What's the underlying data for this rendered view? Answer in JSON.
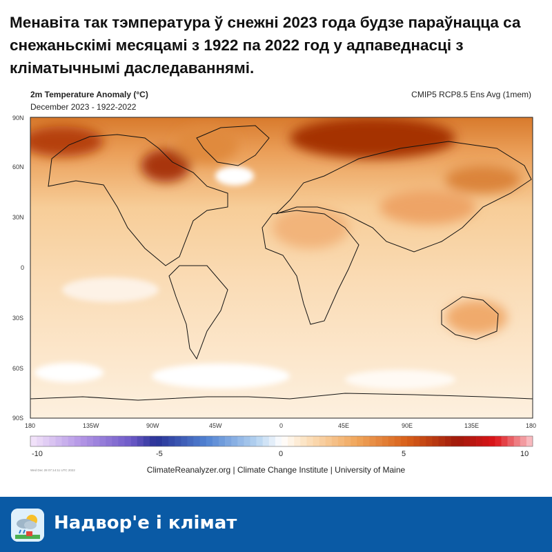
{
  "headline": "Менавіта так тэмпература ў снежні 2023 года будзе параўнацца са снежаньскімі месяцамі з 1922 па 2022 год у адпаведнасці з кліматычнымі даследаваннямі.",
  "map": {
    "title": "2m Temperature Anomaly (°C)",
    "subtitle": "December 2023 - 1922-2022",
    "model": "CMIP5 RCP8.5 Ens Avg (1mem)",
    "lat_labels": [
      "90N",
      "60N",
      "30N",
      "0",
      "30S",
      "60S",
      "90S"
    ],
    "lon_labels": [
      "180",
      "135W",
      "90W",
      "45W",
      "0",
      "45E",
      "90E",
      "135E",
      "180"
    ],
    "colorbar": {
      "ticks": [
        "-10",
        "-5",
        "0",
        "5",
        "10"
      ],
      "range": [
        -10,
        10
      ]
    },
    "credit": "ClimateReanalyzer.org | Climate Change Institute | University of Maine",
    "timestamp": "Wed Dec 28 07:14:11 UTC 2022"
  },
  "footer": {
    "label": "Надвор'е і клімат",
    "icon": "weather-cloud-sun-icon"
  },
  "colors": {
    "footer_bg": "#0a5aa5",
    "warm_max": "#8b1a00",
    "cold_max": "#1c2a8c"
  }
}
